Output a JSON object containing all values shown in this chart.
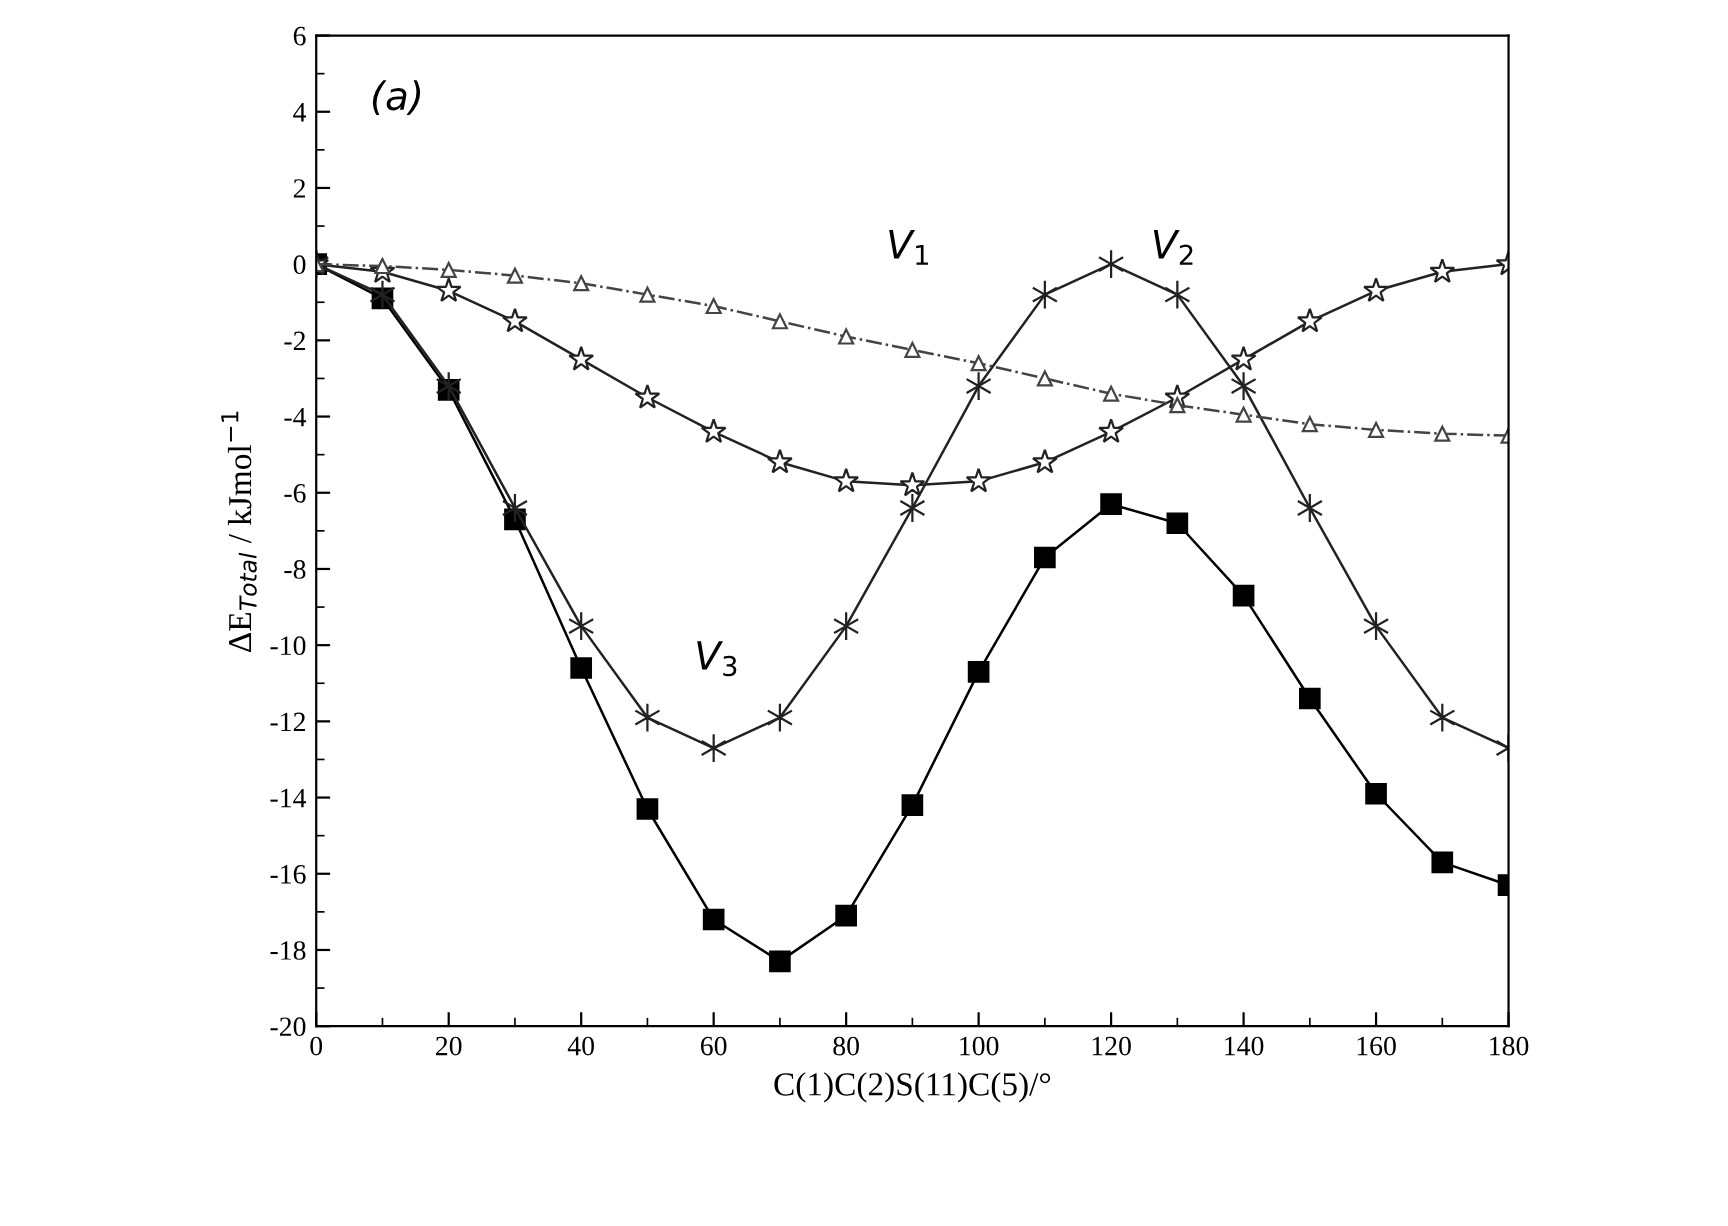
{
  "chart_data": {
    "type": "line",
    "xlabel": "C(1)C(2)S(11)C(5)/°",
    "ylabel": "ΔE$_{Total}$ / kJmol$^{−1}$",
    "x": [
      0,
      10,
      20,
      30,
      40,
      50,
      60,
      70,
      80,
      90,
      100,
      110,
      120,
      130,
      140,
      150,
      160,
      170,
      180
    ],
    "series": [
      {
        "color": "#000000",
        "marker": "square",
        "line_style": "solid",
        "values": [
          0,
          -0.9,
          -3.3,
          -6.7,
          -10.6,
          -14.3,
          -17.2,
          -18.3,
          -17.1,
          -14.2,
          -10.7,
          -7.7,
          -6.3,
          -6.8,
          -8.7,
          -11.4,
          -13.9,
          -15.7,
          -16.3
        ]
      },
      {
        "color": "#222222",
        "marker": "cross",
        "line_style": "solid",
        "values": [
          0,
          -0.8,
          -3.2,
          -6.4,
          -9.5,
          -11.9,
          -12.7,
          -11.9,
          -9.5,
          -6.4,
          -3.2,
          -0.8,
          0,
          -0.8,
          -3.2,
          -6.4,
          -9.5,
          -11.9,
          -12.7
        ]
      },
      {
        "color": "#222222",
        "marker": "star",
        "line_style": "solid",
        "values": [
          0,
          -0.2,
          -0.7,
          -1.5,
          -2.5,
          -3.5,
          -4.4,
          -5.2,
          -5.7,
          -5.8,
          -5.7,
          -5.2,
          -4.4,
          -3.5,
          -2.5,
          -1.5,
          -0.7,
          -0.2,
          0
        ]
      },
      {
        "color": "#444444",
        "marker": "triangle",
        "line_style": "dotted",
        "values": [
          0,
          -0.05,
          -0.15,
          -0.3,
          -0.5,
          -0.8,
          -1.1,
          -1.5,
          -1.9,
          -2.25,
          -2.6,
          -3.0,
          -3.4,
          -3.7,
          -3.95,
          -4.2,
          -4.35,
          -4.45,
          -4.5
        ]
      }
    ],
    "annotations": [
      "(a)",
      "V$_{1}$",
      "V$_{2}$",
      "V$_{3}$"
    ],
    "xlim": [
      0,
      180
    ],
    "ylim": [
      -20,
      6
    ],
    "xticks": [
      0,
      20,
      40,
      60,
      80,
      100,
      120,
      140,
      160,
      180
    ],
    "yticks": [
      -20,
      -18,
      -16,
      -14,
      -12,
      -10,
      -8,
      -6,
      -4,
      -2,
      0,
      2,
      4,
      6
    ],
    "grid": false,
    "legend": false
  }
}
